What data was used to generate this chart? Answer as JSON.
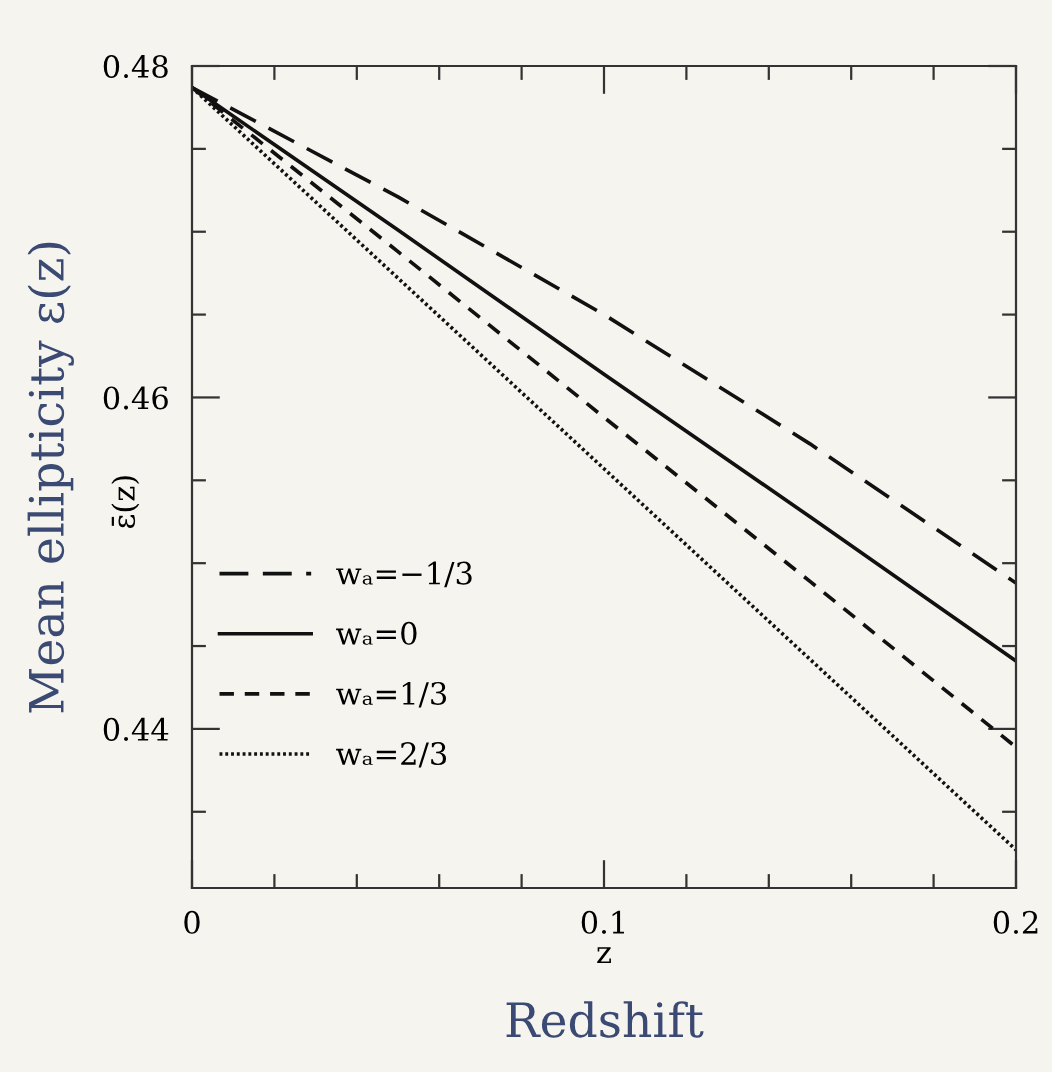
{
  "chart_data": {
    "type": "line",
    "xlabel": "z",
    "ylabel": "Mean ellipticity ε(z)",
    "annotations": [
      "ε̄(z)",
      "Redshift"
    ],
    "x": [
      0,
      0.05,
      0.1,
      0.15,
      0.2
    ],
    "series": [
      {
        "name": "wₐ=−1/3",
        "color": "#111111",
        "line_style": "dashed",
        "values": [
          0.4787,
          0.4721,
          0.465,
          0.4572,
          0.4488
        ]
      },
      {
        "name": "wₐ=0",
        "color": "#111111",
        "line_style": "solid",
        "values": [
          0.4787,
          0.4701,
          0.4614,
          0.4528,
          0.4441
        ]
      },
      {
        "name": "wₐ=1/3",
        "color": "#111111",
        "line_style": "dashed",
        "values": [
          0.4787,
          0.4688,
          0.4588,
          0.4489,
          0.4389
        ]
      },
      {
        "name": "wₐ=2/3",
        "color": "#111111",
        "line_style": "dotted",
        "values": [
          0.4787,
          0.4672,
          0.4557,
          0.4442,
          0.4327
        ]
      }
    ],
    "xlim": [
      0,
      0.2
    ],
    "ylim": [
      0.4304,
      0.48
    ],
    "xticks": [
      0,
      {
        "value": 0.02,
        "label": null
      },
      {
        "value": 0.04,
        "label": null
      },
      {
        "value": 0.06,
        "label": null
      },
      {
        "value": 0.08,
        "label": null
      },
      0.1,
      {
        "value": 0.12,
        "label": null
      },
      {
        "value": 0.14,
        "label": null
      },
      {
        "value": 0.16,
        "label": null
      },
      {
        "value": 0.18,
        "label": null
      },
      0.2
    ],
    "yticks": [
      {
        "value": 0.435,
        "label": null
      },
      0.44,
      {
        "value": 0.445,
        "label": null
      },
      {
        "value": 0.45,
        "label": null
      },
      {
        "value": 0.455,
        "label": null
      },
      0.46,
      {
        "value": 0.465,
        "label": null
      },
      {
        "value": 0.47,
        "label": null
      },
      {
        "value": 0.475,
        "label": null
      },
      0.48
    ],
    "legend": "left",
    "grid": false,
    "marker": "none"
  }
}
